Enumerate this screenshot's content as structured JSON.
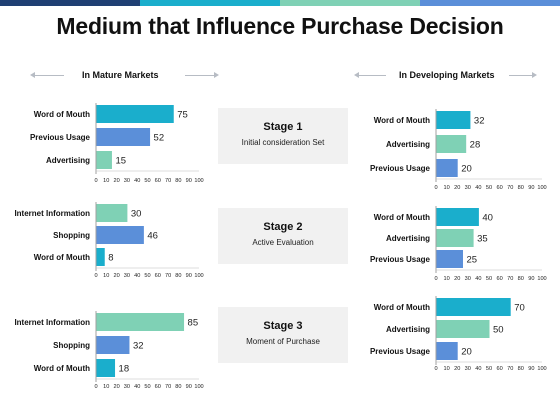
{
  "colors": {
    "accent_top": [
      "#1f3f73",
      "#1aaecc",
      "#7fd1b5",
      "#5b8fd9"
    ]
  },
  "title": "Medium that Influence Purchase Decision",
  "sections": {
    "left": "In Mature Markets",
    "right": "In Developing Markets"
  },
  "stages": [
    {
      "title": "Stage 1",
      "subtitle": "Initial consideration Set"
    },
    {
      "title": "Stage 2",
      "subtitle": "Active Evaluation"
    },
    {
      "title": "Stage 3",
      "subtitle": "Moment of Purchase"
    }
  ],
  "chart_data": [
    {
      "type": "bar",
      "orientation": "horizontal",
      "market": "In Mature Markets",
      "stage": "Stage 1",
      "categories": [
        "Word of Mouth",
        "Previous Usage",
        "Advertising"
      ],
      "values": [
        75,
        52,
        15
      ],
      "colors": [
        "#1aaecc",
        "#5b8fd9",
        "#7fd1b5"
      ],
      "xlim": [
        0,
        100
      ],
      "ticks": [
        "0",
        "10",
        "20",
        "30",
        "40",
        "50",
        "60",
        "70",
        "80",
        "90",
        "100"
      ]
    },
    {
      "type": "bar",
      "orientation": "horizontal",
      "market": "In Mature Markets",
      "stage": "Stage 2",
      "categories": [
        "Internet Information",
        "Shopping",
        "Word of Mouth"
      ],
      "values": [
        30,
        46,
        8
      ],
      "colors": [
        "#7fd1b5",
        "#5b8fd9",
        "#1aaecc"
      ],
      "xlim": [
        0,
        100
      ],
      "ticks": [
        "0",
        "10",
        "20",
        "30",
        "40",
        "50",
        "60",
        "70",
        "80",
        "90",
        "100"
      ]
    },
    {
      "type": "bar",
      "orientation": "horizontal",
      "market": "In Mature Markets",
      "stage": "Stage 3",
      "categories": [
        "Internet Information",
        "Shopping",
        "Word of Mouth"
      ],
      "values": [
        85,
        32,
        18
      ],
      "colors": [
        "#7fd1b5",
        "#5b8fd9",
        "#1aaecc"
      ],
      "xlim": [
        0,
        100
      ],
      "ticks": [
        "0",
        "10",
        "20",
        "30",
        "40",
        "50",
        "60",
        "70",
        "80",
        "90",
        "100"
      ]
    },
    {
      "type": "bar",
      "orientation": "horizontal",
      "market": "In Developing Markets",
      "stage": "Stage 1",
      "categories": [
        "Word of Mouth",
        "Advertising",
        "Previous Usage"
      ],
      "values": [
        32,
        28,
        20
      ],
      "colors": [
        "#1aaecc",
        "#7fd1b5",
        "#5b8fd9"
      ],
      "xlim": [
        0,
        100
      ],
      "ticks": [
        "0",
        "10",
        "20",
        "30",
        "40",
        "50",
        "60",
        "70",
        "80",
        "90",
        "100"
      ]
    },
    {
      "type": "bar",
      "orientation": "horizontal",
      "market": "In Developing Markets",
      "stage": "Stage 2",
      "categories": [
        "Word of Mouth",
        "Advertising",
        "Previous Usage"
      ],
      "values": [
        40,
        35,
        25
      ],
      "colors": [
        "#1aaecc",
        "#7fd1b5",
        "#5b8fd9"
      ],
      "xlim": [
        0,
        100
      ],
      "ticks": [
        "0",
        "10",
        "20",
        "30",
        "40",
        "50",
        "60",
        "70",
        "80",
        "90",
        "100"
      ]
    },
    {
      "type": "bar",
      "orientation": "horizontal",
      "market": "In Developing Markets",
      "stage": "Stage 3",
      "categories": [
        "Word of Mouth",
        "Advertising",
        "Previous Usage"
      ],
      "values": [
        70,
        50,
        20
      ],
      "colors": [
        "#1aaecc",
        "#7fd1b5",
        "#5b8fd9"
      ],
      "xlim": [
        0,
        100
      ],
      "ticks": [
        "0",
        "10",
        "20",
        "30",
        "40",
        "50",
        "60",
        "70",
        "80",
        "90",
        "100"
      ]
    }
  ]
}
